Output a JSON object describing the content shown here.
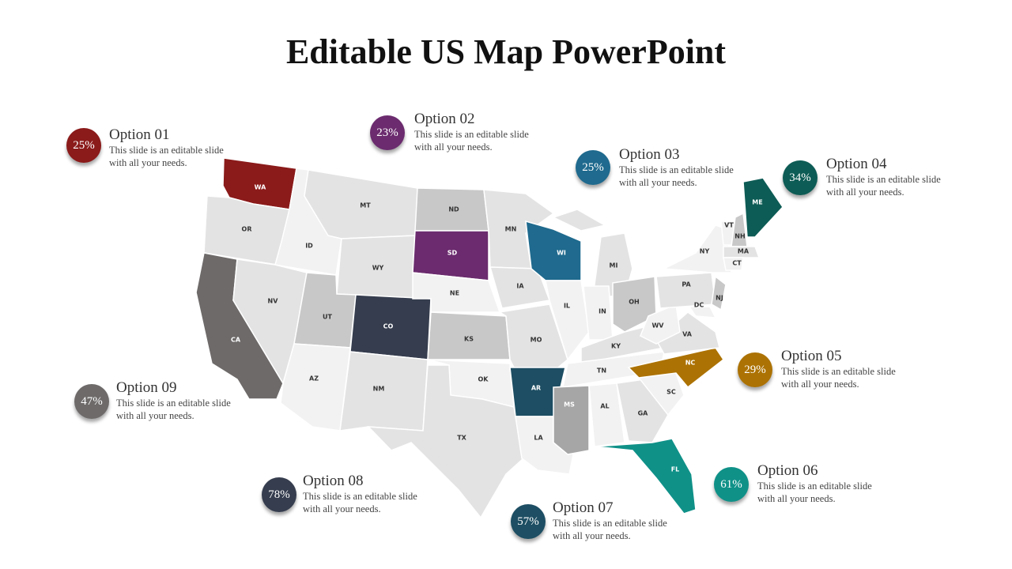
{
  "title": "Editable US Map PowerPoint",
  "options": [
    {
      "label": "Option 01",
      "value": "25%",
      "text": "This slide is an editable slide with all your needs."
    },
    {
      "label": "Option 02",
      "value": "23%",
      "text": "This slide is an editable slide with all your needs."
    },
    {
      "label": "Option 03",
      "value": "25%",
      "text": "This slide is an editable slide with all your needs."
    },
    {
      "label": "Option 04",
      "value": "34%",
      "text": "This slide is an editable slide with all your needs."
    },
    {
      "label": "Option 05",
      "value": "29%",
      "text": "This slide is an editable slide with all your needs."
    },
    {
      "label": "Option 06",
      "value": "61%",
      "text": "This slide is an editable slide with all your needs."
    },
    {
      "label": "Option 07",
      "value": "57%",
      "text": "This slide is an editable slide with all your needs."
    },
    {
      "label": "Option 08",
      "value": "78%",
      "text": "This slide is an editable slide with all your needs."
    },
    {
      "label": "Option 09",
      "value": "47%",
      "text": "This slide is an editable slide with all your needs."
    }
  ],
  "states": [
    "WA",
    "OR",
    "CA",
    "ID",
    "NV",
    "MT",
    "WY",
    "UT",
    "AZ",
    "CO",
    "NM",
    "ND",
    "SD",
    "NE",
    "KS",
    "OK",
    "TX",
    "MN",
    "IA",
    "MO",
    "AR",
    "LA",
    "WI",
    "IL",
    "MI",
    "IN",
    "OH",
    "KY",
    "TN",
    "MS",
    "AL",
    "GA",
    "FL",
    "SC",
    "NC",
    "VA",
    "WV",
    "PA",
    "NY",
    "NJ",
    "DC",
    "VT",
    "NH",
    "MA",
    "CT",
    "ME"
  ]
}
